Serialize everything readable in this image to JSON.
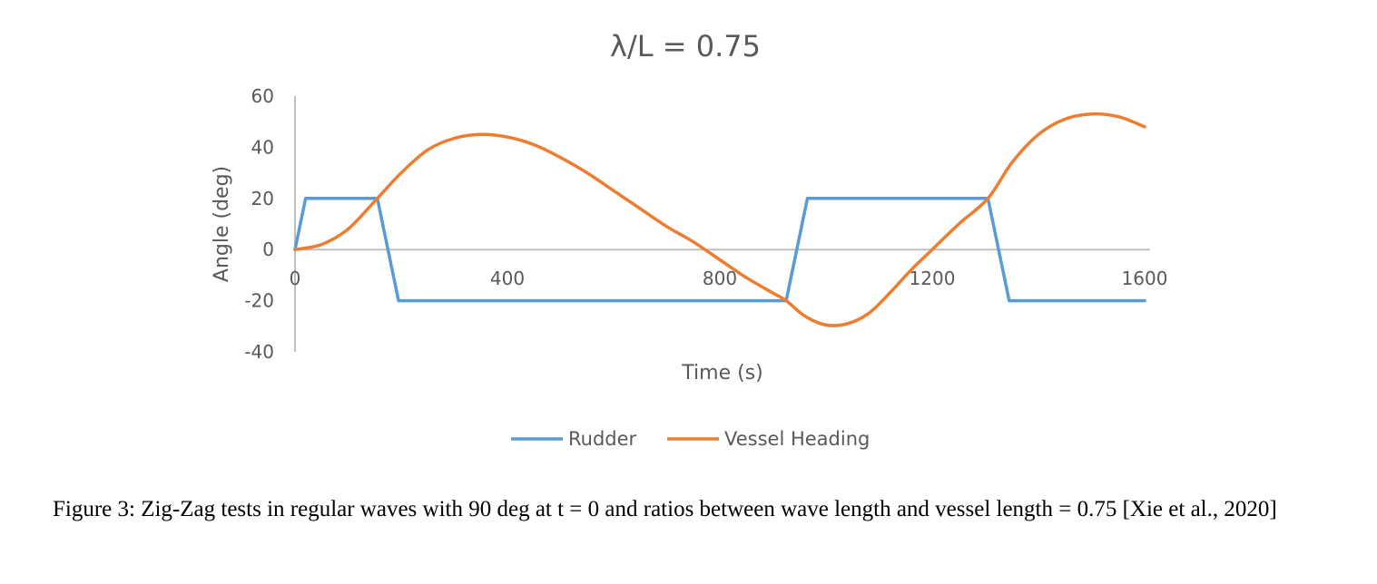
{
  "chart_data": {
    "type": "line",
    "title": "λ/L = 0.75",
    "xlabel": "Time (s)",
    "ylabel": "Angle (deg)",
    "xlim": [
      0,
      1600
    ],
    "ylim": [
      -40,
      60
    ],
    "xticks": [
      "0",
      "400",
      "800",
      "1200",
      "1600"
    ],
    "xtick_values": [
      0,
      400,
      800,
      1200,
      1600
    ],
    "yticks": [
      "60",
      "40",
      "20",
      "0",
      "-20",
      "-40"
    ],
    "ytick_values": [
      60,
      40,
      20,
      0,
      -20,
      -40
    ],
    "grid": false,
    "legend_position": "bottom",
    "series": [
      {
        "name": "Rudder",
        "color": "#5B9BD5",
        "points": [
          [
            0,
            0
          ],
          [
            20,
            20
          ],
          [
            155,
            20
          ],
          [
            195,
            -20
          ],
          [
            925,
            -20
          ],
          [
            965,
            20
          ],
          [
            1305,
            20
          ],
          [
            1345,
            -20
          ],
          [
            1600,
            -20
          ]
        ]
      },
      {
        "name": "Vessel Heading",
        "color": "#ED7D31",
        "points": [
          [
            0,
            0
          ],
          [
            50,
            2
          ],
          [
            100,
            8
          ],
          [
            155,
            20
          ],
          [
            200,
            30
          ],
          [
            250,
            39
          ],
          [
            300,
            43.5
          ],
          [
            350,
            45
          ],
          [
            400,
            44
          ],
          [
            450,
            41
          ],
          [
            500,
            36
          ],
          [
            550,
            30
          ],
          [
            600,
            23
          ],
          [
            650,
            16
          ],
          [
            700,
            9
          ],
          [
            750,
            3
          ],
          [
            800,
            -4
          ],
          [
            850,
            -11
          ],
          [
            900,
            -17
          ],
          [
            925,
            -20
          ],
          [
            960,
            -26
          ],
          [
            1000,
            -29.5
          ],
          [
            1040,
            -29
          ],
          [
            1080,
            -25
          ],
          [
            1120,
            -17
          ],
          [
            1160,
            -8
          ],
          [
            1200,
            0
          ],
          [
            1250,
            10
          ],
          [
            1305,
            20
          ],
          [
            1350,
            34
          ],
          [
            1400,
            45
          ],
          [
            1450,
            51
          ],
          [
            1500,
            53
          ],
          [
            1550,
            52
          ],
          [
            1600,
            48
          ]
        ]
      }
    ]
  },
  "caption": "Figure 3: Zig-Zag tests in regular waves with 90 deg at t = 0 and ratios between wave length and vessel length = 0.75 [Xie et al., 2020]"
}
